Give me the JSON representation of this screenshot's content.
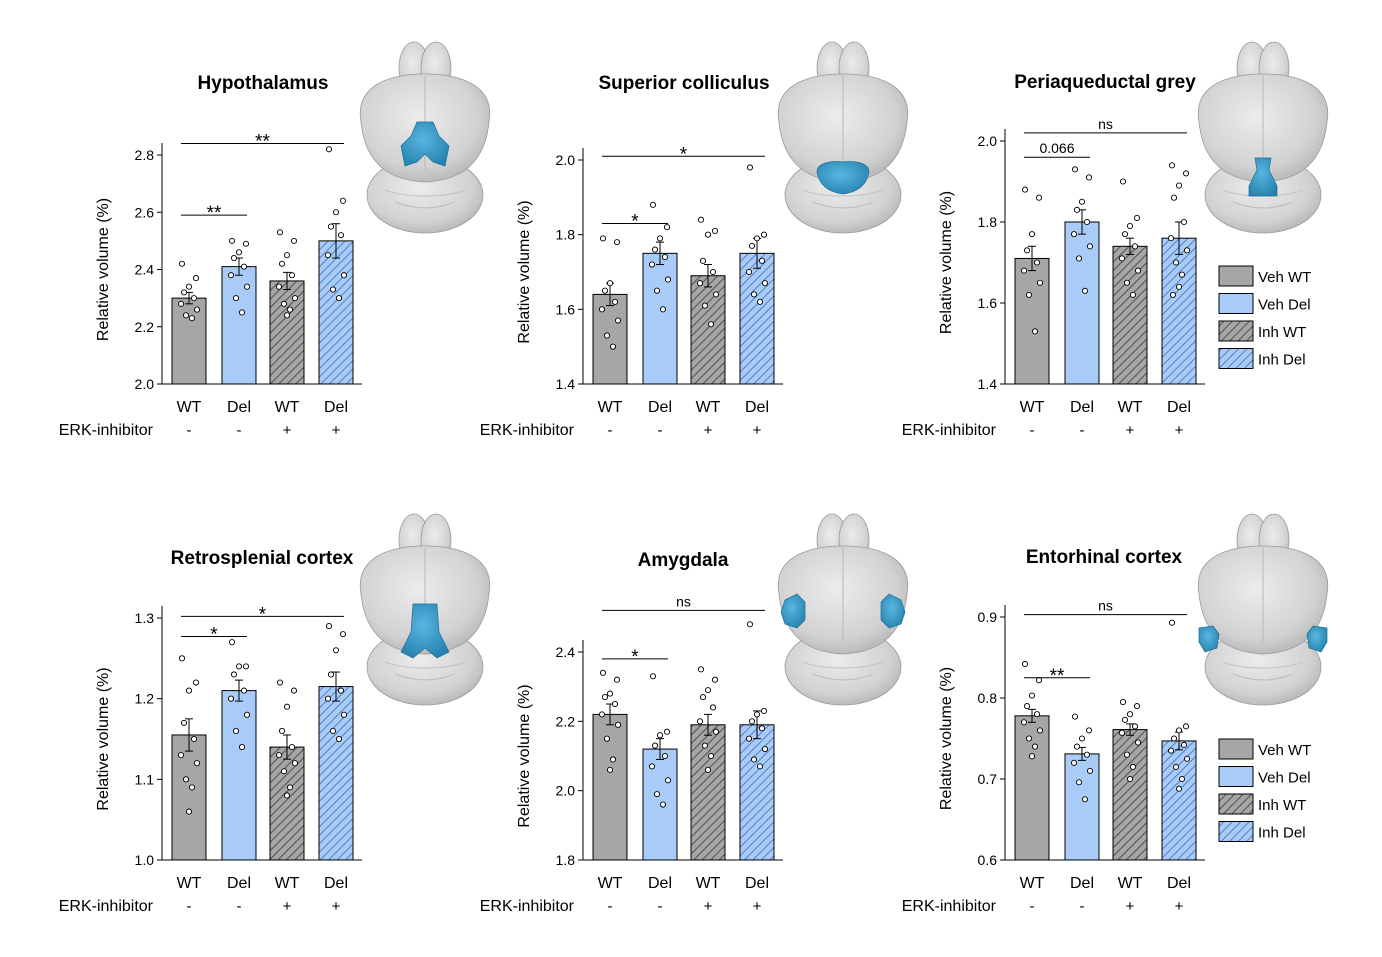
{
  "figure": {
    "x_categories": [
      "WT",
      "Del",
      "WT",
      "Del"
    ],
    "inhibitor_label": "ERK-inhibitor",
    "inhibitor_signs": [
      "-",
      "-",
      "+",
      "+"
    ],
    "ylabel": "Relative volume (%)"
  },
  "legend": {
    "items": [
      {
        "label": "Veh WT",
        "fill": "#a6a6a6",
        "hatch": false
      },
      {
        "label": "Veh Del",
        "fill": "#a9cbf7",
        "hatch": false
      },
      {
        "label": "Inh WT",
        "fill": "#a6a6a6",
        "hatch": true
      },
      {
        "label": "Inh Del",
        "fill": "#a9cbf7",
        "hatch": true
      }
    ]
  },
  "colors": {
    "wt": "#a6a6a6",
    "del": "#a9cbf7",
    "hatch_wt": "#555555",
    "hatch_del": "#3a6fb5",
    "highlight": "#3399cc",
    "brain": "#d0d0d0"
  },
  "chart_data": [
    {
      "type": "bar",
      "title": "Hypothalamus",
      "region_icon": "hypothalamus",
      "categories": [
        "WT",
        "Del",
        "WT",
        "Del"
      ],
      "series": [
        {
          "name": "mean",
          "values": [
            2.3,
            2.41,
            2.36,
            2.5
          ]
        },
        {
          "name": "sem",
          "values": [
            0.02,
            0.03,
            0.03,
            0.06
          ]
        }
      ],
      "points": [
        [
          2.42,
          2.37,
          2.34,
          2.32,
          2.3,
          2.28,
          2.26,
          2.24,
          2.23
        ],
        [
          2.5,
          2.49,
          2.46,
          2.44,
          2.41,
          2.38,
          2.34,
          2.3,
          2.25
        ],
        [
          2.53,
          2.5,
          2.45,
          2.42,
          2.38,
          2.34,
          2.3,
          2.28,
          2.26,
          2.24
        ],
        [
          2.82,
          2.64,
          2.6,
          2.55,
          2.52,
          2.45,
          2.38,
          2.33,
          2.3
        ]
      ],
      "ylim": [
        2.0,
        2.8
      ],
      "yticks": [
        "2.0",
        "2.2",
        "2.4",
        "2.6",
        "2.8"
      ],
      "annotations": [
        {
          "from": 0,
          "to": 1,
          "level": 2.59,
          "label": "**"
        },
        {
          "from": 0,
          "to": 3,
          "level": 2.84,
          "label": "**"
        }
      ]
    },
    {
      "type": "bar",
      "title": "Superior colliculus",
      "region_icon": "superior-colliculus",
      "categories": [
        "WT",
        "Del",
        "WT",
        "Del"
      ],
      "series": [
        {
          "name": "mean",
          "values": [
            1.64,
            1.75,
            1.69,
            1.75
          ]
        },
        {
          "name": "sem",
          "values": [
            0.03,
            0.03,
            0.03,
            0.04
          ]
        }
      ],
      "points": [
        [
          1.79,
          1.78,
          1.67,
          1.65,
          1.62,
          1.6,
          1.57,
          1.53,
          1.5
        ],
        [
          1.88,
          1.82,
          1.79,
          1.76,
          1.74,
          1.72,
          1.68,
          1.65,
          1.6
        ],
        [
          1.84,
          1.81,
          1.8,
          1.73,
          1.7,
          1.67,
          1.64,
          1.61,
          1.56
        ],
        [
          1.98,
          1.8,
          1.79,
          1.77,
          1.73,
          1.7,
          1.67,
          1.64,
          1.62
        ]
      ],
      "ylim": [
        1.4,
        2.0
      ],
      "yticks": [
        "1.4",
        "1.6",
        "1.8",
        "2.0"
      ],
      "annotations": [
        {
          "from": 0,
          "to": 1,
          "level": 1.83,
          "label": "*"
        },
        {
          "from": 0,
          "to": 3,
          "level": 2.01,
          "label": "*"
        }
      ]
    },
    {
      "type": "bar",
      "title": "Periaqueductal grey",
      "region_icon": "periaqueductal-grey",
      "categories": [
        "WT",
        "Del",
        "WT",
        "Del"
      ],
      "series": [
        {
          "name": "mean",
          "values": [
            1.71,
            1.8,
            1.74,
            1.76
          ]
        },
        {
          "name": "sem",
          "values": [
            0.03,
            0.03,
            0.02,
            0.04
          ]
        }
      ],
      "points": [
        [
          1.88,
          1.86,
          1.77,
          1.73,
          1.7,
          1.68,
          1.65,
          1.62,
          1.53
        ],
        [
          1.93,
          1.91,
          1.85,
          1.83,
          1.8,
          1.77,
          1.74,
          1.71,
          1.63
        ],
        [
          1.9,
          1.81,
          1.79,
          1.77,
          1.74,
          1.71,
          1.68,
          1.65,
          1.62
        ],
        [
          1.94,
          1.92,
          1.89,
          1.86,
          1.8,
          1.76,
          1.73,
          1.7,
          1.67,
          1.64,
          1.62
        ]
      ],
      "ylim": [
        1.4,
        2.0
      ],
      "yticks": [
        "1.4",
        "1.6",
        "1.8",
        "2.0"
      ],
      "annotations": [
        {
          "from": 0,
          "to": 1,
          "level": 1.96,
          "label": "0.066"
        },
        {
          "from": 0,
          "to": 3,
          "level": 2.02,
          "label": "ns"
        }
      ]
    },
    {
      "type": "bar",
      "title": "Retrosplenial cortex",
      "region_icon": "retrosplenial-cortex",
      "categories": [
        "WT",
        "Del",
        "WT",
        "Del"
      ],
      "series": [
        {
          "name": "mean",
          "values": [
            1.155,
            1.21,
            1.14,
            1.215
          ]
        },
        {
          "name": "sem",
          "values": [
            0.02,
            0.013,
            0.015,
            0.018
          ]
        }
      ],
      "points": [
        [
          1.25,
          1.22,
          1.21,
          1.17,
          1.15,
          1.13,
          1.12,
          1.1,
          1.09,
          1.06
        ],
        [
          1.27,
          1.24,
          1.24,
          1.23,
          1.21,
          1.2,
          1.18,
          1.16,
          1.14
        ],
        [
          1.22,
          1.21,
          1.19,
          1.16,
          1.14,
          1.13,
          1.12,
          1.11,
          1.09,
          1.08
        ],
        [
          1.29,
          1.28,
          1.26,
          1.23,
          1.21,
          1.2,
          1.18,
          1.16,
          1.15
        ]
      ],
      "ylim": [
        1.0,
        1.3
      ],
      "yticks": [
        "1.0",
        "1.1",
        "1.2",
        "1.3"
      ],
      "annotations": [
        {
          "from": 0,
          "to": 1,
          "level": 1.277,
          "label": "*"
        },
        {
          "from": 0,
          "to": 3,
          "level": 1.302,
          "label": "*"
        }
      ]
    },
    {
      "type": "bar",
      "title": "Amygdala",
      "region_icon": "amygdala",
      "categories": [
        "WT",
        "Del",
        "WT",
        "Del"
      ],
      "series": [
        {
          "name": "mean",
          "values": [
            2.22,
            2.12,
            2.19,
            2.19
          ]
        },
        {
          "name": "sem",
          "values": [
            0.03,
            0.03,
            0.03,
            0.04
          ]
        }
      ],
      "points": [
        [
          2.34,
          2.32,
          2.28,
          2.27,
          2.25,
          2.22,
          2.19,
          2.15,
          2.09,
          2.06
        ],
        [
          2.33,
          2.17,
          2.16,
          2.13,
          2.1,
          2.07,
          2.03,
          1.99,
          1.96
        ],
        [
          2.35,
          2.32,
          2.29,
          2.27,
          2.24,
          2.2,
          2.17,
          2.13,
          2.1,
          2.06
        ],
        [
          2.48,
          2.23,
          2.22,
          2.2,
          2.18,
          2.15,
          2.12,
          2.09,
          2.07
        ]
      ],
      "ylim": [
        1.8,
        2.4
      ],
      "yticks": [
        "1.8",
        "2.0",
        "2.2",
        "2.4"
      ],
      "annotations": [
        {
          "from": 0,
          "to": 1,
          "level": 2.38,
          "label": "*"
        },
        {
          "from": 0,
          "to": 3,
          "level": 2.52,
          "label": "ns"
        }
      ]
    },
    {
      "type": "bar",
      "title": "Entorhinal cortex",
      "region_icon": "entorhinal-cortex",
      "categories": [
        "WT",
        "Del",
        "WT",
        "Del"
      ],
      "series": [
        {
          "name": "mean",
          "values": [
            0.778,
            0.731,
            0.761,
            0.747
          ]
        },
        {
          "name": "sem",
          "values": [
            0.008,
            0.008,
            0.007,
            0.011
          ]
        }
      ],
      "points": [
        [
          0.842,
          0.822,
          0.803,
          0.79,
          0.78,
          0.77,
          0.76,
          0.75,
          0.74,
          0.728
        ],
        [
          0.777,
          0.76,
          0.75,
          0.74,
          0.73,
          0.72,
          0.71,
          0.696,
          0.675
        ],
        [
          0.795,
          0.79,
          0.78,
          0.773,
          0.765,
          0.757,
          0.745,
          0.73,
          0.715,
          0.7
        ],
        [
          0.893,
          0.765,
          0.76,
          0.75,
          0.742,
          0.735,
          0.725,
          0.715,
          0.7,
          0.688
        ]
      ],
      "ylim": [
        0.6,
        0.9
      ],
      "yticks": [
        "0.6",
        "0.7",
        "0.8",
        "0.9"
      ],
      "annotations": [
        {
          "from": 0,
          "to": 1,
          "level": 0.825,
          "label": "**"
        },
        {
          "from": 0,
          "to": 3,
          "level": 0.903,
          "label": "ns"
        }
      ]
    }
  ]
}
